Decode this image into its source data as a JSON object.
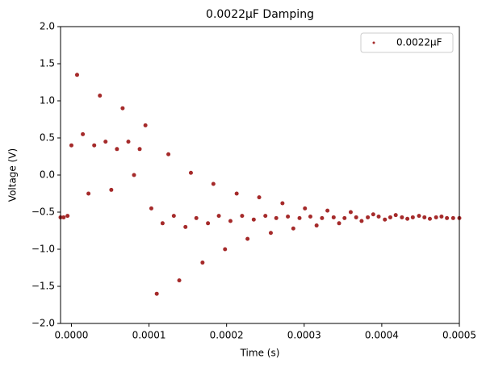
{
  "chart_data": {
    "type": "scatter",
    "title": "0.0022μF Damping",
    "x_label": "Time (s)",
    "y_label": "Voltage (V)",
    "x": [
      -1.4e-05,
      -1e-05,
      -5e-06,
      0.0,
      7.3e-06,
      1.47e-05,
      2.2e-05,
      2.94e-05,
      3.67e-05,
      4.4e-05,
      5.14e-05,
      5.87e-05,
      6.6e-05,
      7.34e-05,
      8.07e-05,
      8.8e-05,
      9.54e-05,
      0.000103,
      0.00011,
      0.0001175,
      0.000125,
      0.000132,
      0.000139,
      0.000147,
      0.000154,
      0.000161,
      0.000169,
      0.000176,
      0.000183,
      0.00019,
      0.000198,
      0.000205,
      0.000213,
      0.00022,
      0.000227,
      0.000235,
      0.000242,
      0.00025,
      0.000257,
      0.000264,
      0.000272,
      0.000279,
      0.000286,
      0.000294,
      0.000301,
      0.000308,
      0.000316,
      0.000323,
      0.00033,
      0.000338,
      0.000345,
      0.000352,
      0.00036,
      0.000367,
      0.000374,
      0.000382,
      0.000389,
      0.000396,
      0.000404,
      0.000411,
      0.000418,
      0.000426,
      0.000433,
      0.00044,
      0.000448,
      0.000455,
      0.000462,
      0.00047,
      0.000477,
      0.000484,
      0.000492,
      0.0005
    ],
    "series": [
      {
        "name": "0.0022μF",
        "color": "#a52a2a",
        "values": [
          -0.57,
          -0.57,
          -0.55,
          0.4,
          1.35,
          0.55,
          -0.25,
          0.4,
          1.07,
          0.45,
          -0.2,
          0.35,
          0.9,
          0.45,
          0.0,
          0.35,
          0.67,
          -0.45,
          -1.6,
          -0.65,
          0.28,
          -0.55,
          -1.42,
          -0.7,
          0.03,
          -0.58,
          -1.18,
          -0.65,
          -0.12,
          -0.55,
          -1.0,
          -0.62,
          -0.25,
          -0.55,
          -0.86,
          -0.6,
          -0.3,
          -0.55,
          -0.78,
          -0.58,
          -0.38,
          -0.56,
          -0.72,
          -0.58,
          -0.45,
          -0.56,
          -0.68,
          -0.58,
          -0.48,
          -0.57,
          -0.65,
          -0.58,
          -0.5,
          -0.57,
          -0.62,
          -0.57,
          -0.53,
          -0.56,
          -0.6,
          -0.57,
          -0.54,
          -0.57,
          -0.59,
          -0.57,
          -0.55,
          -0.57,
          -0.59,
          -0.57,
          -0.56,
          -0.58,
          -0.58,
          -0.58
        ]
      }
    ],
    "xlim": [
      -1.4e-05,
      0.0005
    ],
    "xticks": [
      {
        "value": 0.0,
        "label": "0.0000"
      },
      {
        "value": 0.0001,
        "label": "0.0001"
      },
      {
        "value": 0.0002,
        "label": "0.0002"
      },
      {
        "value": 0.0003,
        "label": "0.0003"
      },
      {
        "value": 0.0004,
        "label": "0.0004"
      },
      {
        "value": 0.0005,
        "label": "0.0005"
      }
    ],
    "ylim": [
      -2,
      2
    ],
    "yticks": [
      {
        "value": -2,
        "label": "−2.0"
      },
      {
        "value": -1.5,
        "label": "−1.5"
      },
      {
        "value": -1,
        "label": "−1.0"
      },
      {
        "value": -0.5,
        "label": "−0.5"
      },
      {
        "value": 0,
        "label": "0.0"
      },
      {
        "value": 0.5,
        "label": "0.5"
      },
      {
        "value": 1,
        "label": "1.0"
      },
      {
        "value": 1.5,
        "label": "1.5"
      },
      {
        "value": 2,
        "label": "2.0"
      }
    ],
    "legend": "upper right"
  }
}
